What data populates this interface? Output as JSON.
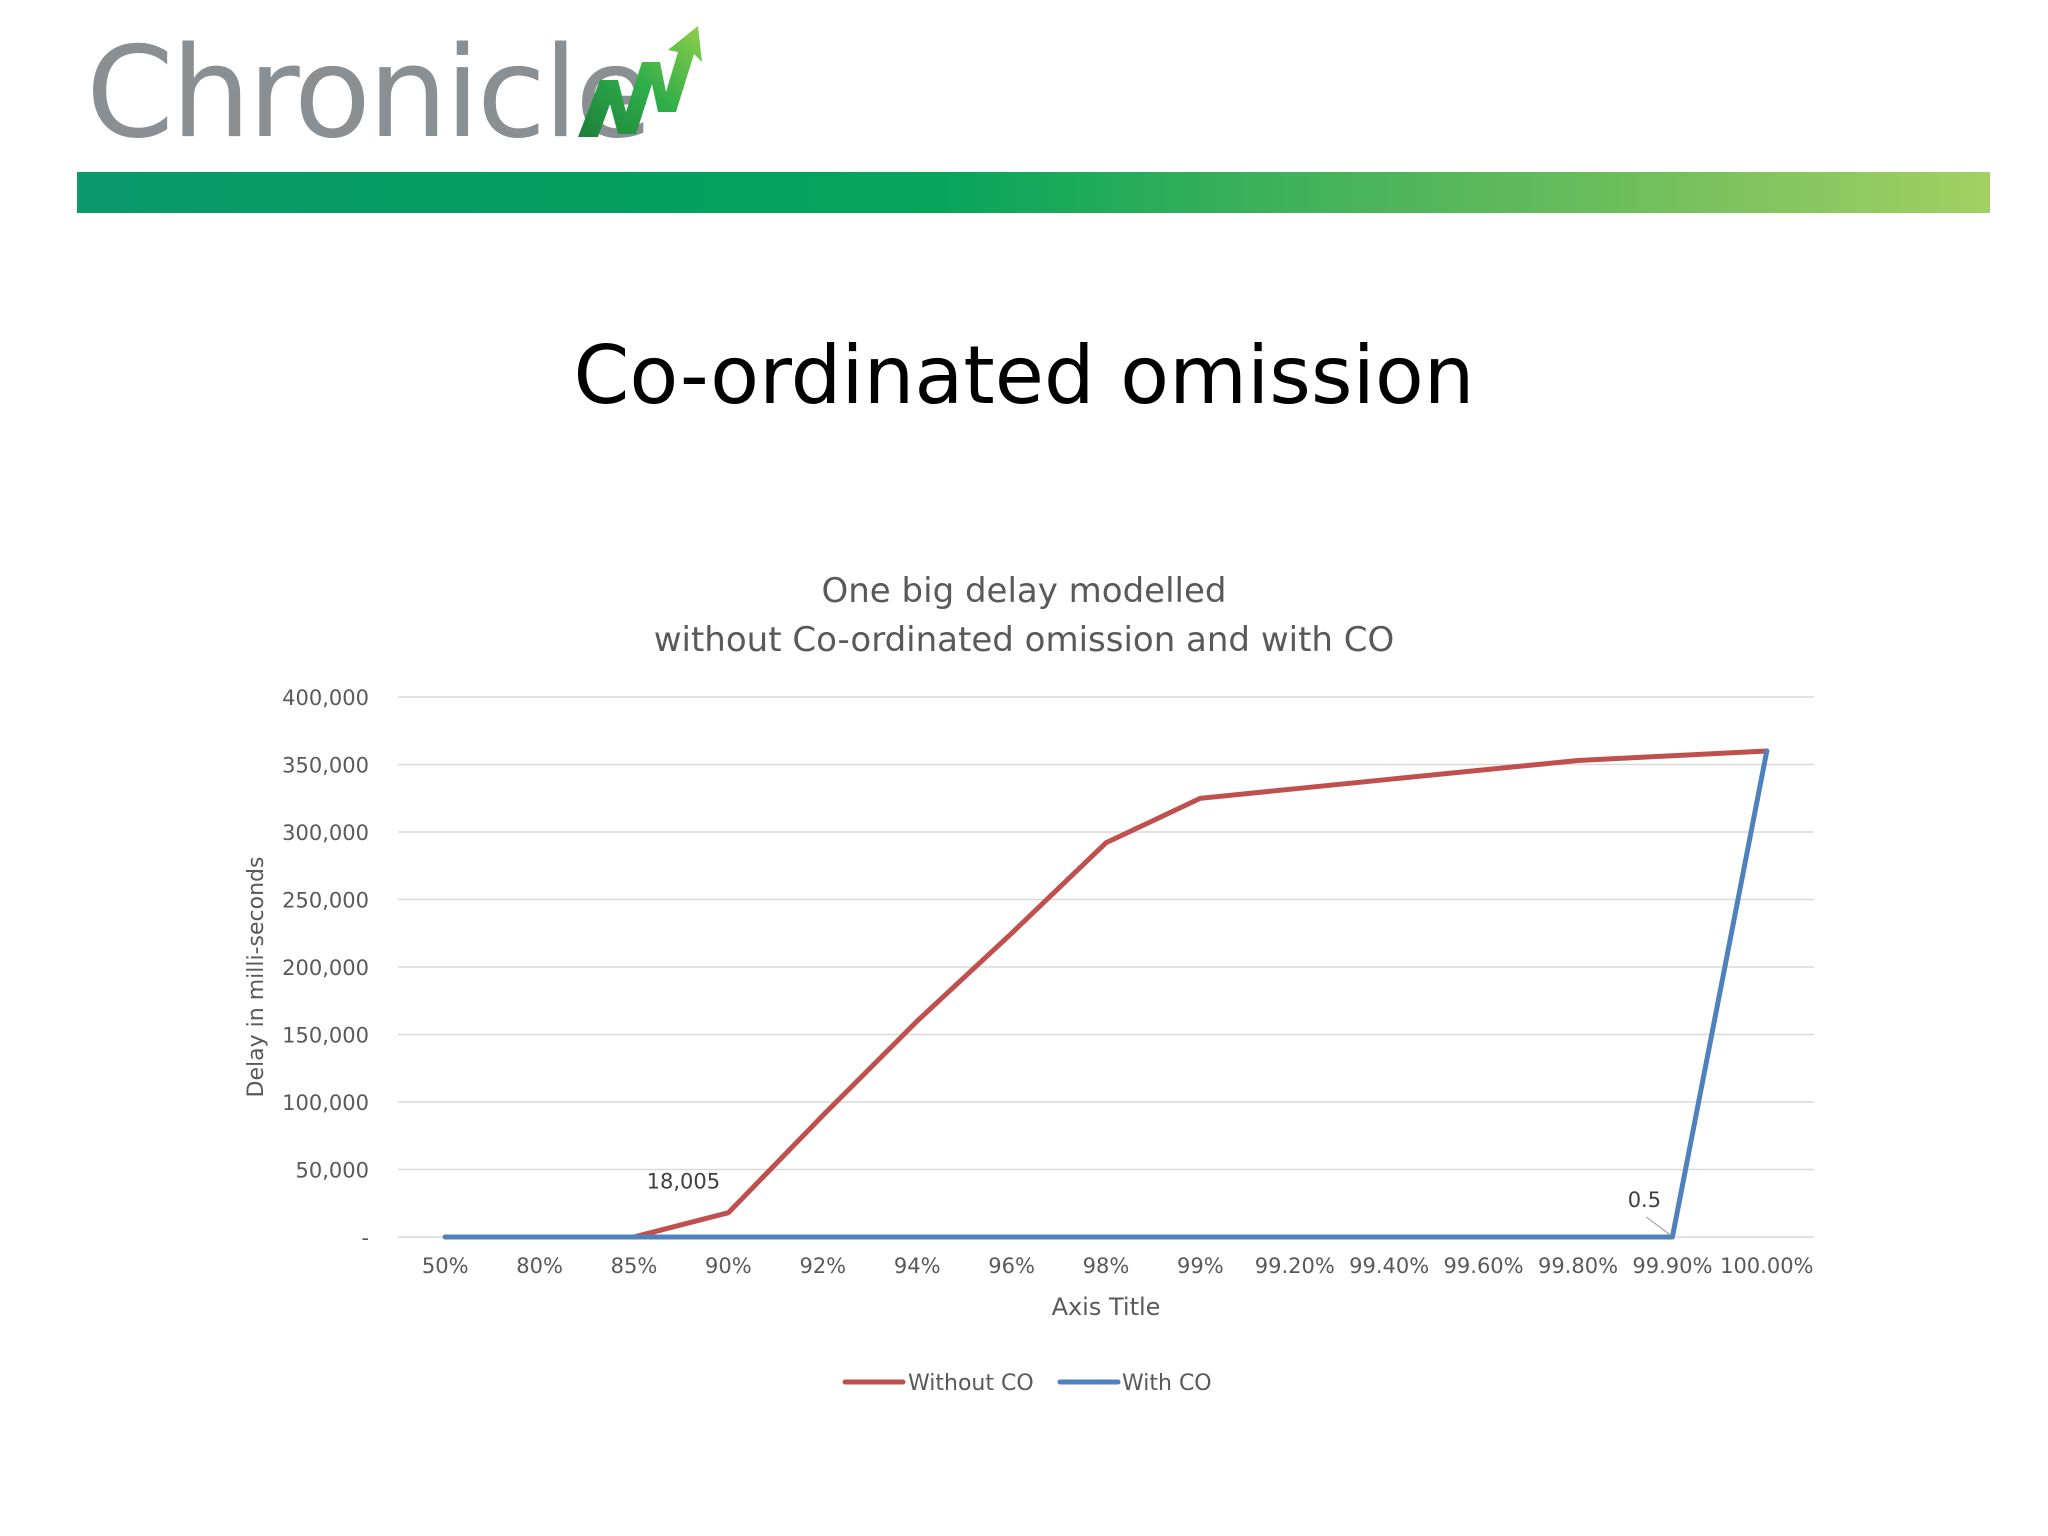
{
  "brand": {
    "logo_text": "Chronicle",
    "colors": {
      "logo_text": "#8a8f93",
      "band_start": "#0a9a6c",
      "band_end": "#a3d062",
      "logo_arrow": "#2fae49"
    },
    "logo_icon": "rising-zigzag-arrow-icon"
  },
  "slide": {
    "title": "Co-ordinated omission"
  },
  "chart_data": {
    "type": "line",
    "title_lines": [
      "One big delay modelled",
      "without Co-ordinated omission and with CO"
    ],
    "xlabel": "Axis Title",
    "ylabel": "Delay in milli-seconds",
    "ylim": [
      0,
      400000
    ],
    "yticks": [
      0,
      50000,
      100000,
      150000,
      200000,
      250000,
      300000,
      350000,
      400000
    ],
    "ytick_labels": [
      "-",
      "50,000",
      "100,000",
      "150,000",
      "200,000",
      "250,000",
      "300,000",
      "350,000",
      "400,000"
    ],
    "categories": [
      "50%",
      "80%",
      "85%",
      "90%",
      "92%",
      "94%",
      "96%",
      "98%",
      "99%",
      "99.20%",
      "99.40%",
      "99.60%",
      "99.80%",
      "99.90%",
      "100.00%"
    ],
    "series": [
      {
        "name": "Without CO",
        "color": "#c0504d",
        "values": [
          0.5,
          0.5,
          0.5,
          18005,
          90000,
          160000,
          225000,
          292000,
          325000,
          332000,
          339000,
          346000,
          353000,
          356500,
          360000
        ]
      },
      {
        "name": "With CO",
        "color": "#4f81bd",
        "values": [
          0.5,
          0.5,
          0.5,
          0.5,
          0.5,
          0.5,
          0.5,
          0.5,
          0.5,
          0.5,
          0.5,
          0.5,
          0.5,
          0.5,
          360000
        ]
      }
    ],
    "annotations": [
      {
        "text": "18,005",
        "series": "Without CO",
        "category": "90%"
      },
      {
        "text": "0.5",
        "series": "With CO",
        "category": "99.90%"
      }
    ],
    "grid": true,
    "legend": "bottom-center"
  }
}
